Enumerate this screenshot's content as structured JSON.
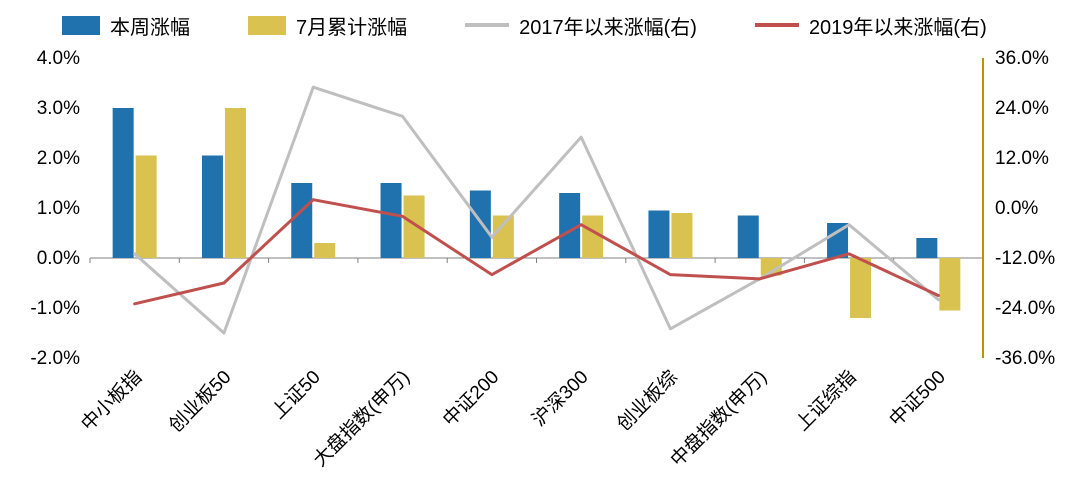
{
  "chart_data": {
    "type": "bar",
    "title": "",
    "xlabel": "",
    "ylabel": "",
    "grid": false,
    "legend_position": "top",
    "categories": [
      "中小板指",
      "创业板50",
      "上证50",
      "大盘指数(申万)",
      "中证200",
      "沪深300",
      "创业板综",
      "中盘指数(申万)",
      "上证综指",
      "中证500"
    ],
    "series": [
      {
        "name": "本周涨幅",
        "type": "bar",
        "axis": "left",
        "color": "#1F72AE",
        "values": [
          3.0,
          2.05,
          1.5,
          1.5,
          1.35,
          1.3,
          0.95,
          0.85,
          0.7,
          0.4
        ]
      },
      {
        "name": "7月累计涨幅",
        "type": "bar",
        "axis": "left",
        "color": "#D9C24F",
        "values": [
          2.05,
          3.0,
          0.3,
          1.25,
          0.85,
          0.85,
          0.9,
          -0.35,
          -1.2,
          -1.05
        ]
      },
      {
        "name": "2017年以来涨幅(右)",
        "type": "line",
        "axis": "right",
        "color": "#BFBFBF",
        "values": [
          -11,
          -30,
          29,
          22,
          -7,
          17,
          -29,
          -17,
          -4,
          -22
        ]
      },
      {
        "name": "2019年以来涨幅(右)",
        "type": "line",
        "axis": "right",
        "color": "#C0504D",
        "values": [
          -23,
          -18,
          2,
          -2,
          -16,
          -4,
          -16,
          -17,
          -11,
          -21
        ]
      }
    ],
    "left_axis": {
      "min": -2,
      "max": 4,
      "ticks": [
        "4.0%",
        "3.0%",
        "2.0%",
        "1.0%",
        "0.0%",
        "-1.0%",
        "-2.0%"
      ]
    },
    "right_axis": {
      "min": -36,
      "max": 36,
      "ticks": [
        "36.0%",
        "24.0%",
        "12.0%",
        "0.0%",
        "-12.0%",
        "-24.0%",
        "-36.0%"
      ],
      "line_color": "#BF9000"
    },
    "baseline_color": "#808080"
  }
}
